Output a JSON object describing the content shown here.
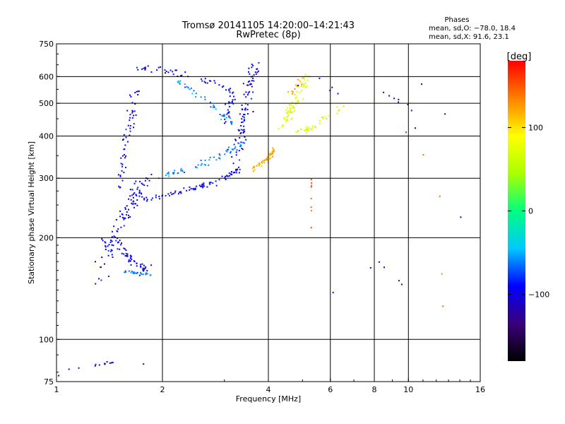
{
  "chart_data": {
    "type": "scatter",
    "title": "Tromsø 20141105 14:20:00–14:21:43",
    "subtitle": "RwPretec (8p)",
    "stats": {
      "heading": "Phases",
      "line_o": "mean, sd,O: −78.0, 18.4",
      "line_x": "mean, sd,X:  91.6, 23.1"
    },
    "xlabel": "Frequency [MHz]",
    "ylabel": "Stationary phase Virtual Height [km]",
    "x_scale": "log",
    "y_scale": "log",
    "xlim": [
      1,
      16
    ],
    "ylim": [
      75,
      750
    ],
    "x_ticks": [
      1,
      2,
      4,
      6,
      8,
      10,
      16
    ],
    "x_tick_labels": [
      "1",
      "2",
      "4",
      "6",
      "8",
      "10",
      "16"
    ],
    "x_grid": [
      2,
      4,
      6,
      8,
      10
    ],
    "y_ticks": [
      75,
      100,
      200,
      300,
      400,
      500,
      600,
      750
    ],
    "y_tick_labels": [
      "75",
      "100",
      "200",
      "300",
      "400",
      "500",
      "600",
      "750"
    ],
    "y_grid": [
      100,
      200,
      300,
      400,
      500,
      600
    ],
    "grid": true,
    "colorbar": {
      "unit_label": "[deg]",
      "range": [
        -180,
        180
      ],
      "ticks": [
        100,
        0,
        -100
      ],
      "tick_labels": [
        "100",
        "0",
        "−100"
      ],
      "colormap": [
        "#000000",
        "#3a007a",
        "#0000ff",
        "#00c8ff",
        "#00ff80",
        "#aaff00",
        "#ffff00",
        "#ff8000",
        "#ff0000"
      ]
    },
    "series": [
      {
        "phase_deg": -95,
        "traces": [
          {
            "f": [
              1.32,
              1.4,
              1.5,
              1.6,
              1.7,
              1.8
            ],
            "h": [
              150,
              180,
              215,
              245,
              270,
              300
            ],
            "spread": 0.07,
            "n": 90
          },
          {
            "f": [
              1.4,
              1.5,
              1.6,
              1.7,
              1.8
            ],
            "h": [
              200,
              190,
              175,
              165,
              160
            ],
            "spread": 0.06,
            "n": 60
          },
          {
            "f": [
              1.5,
              1.55,
              1.6,
              1.65,
              1.7
            ],
            "h": [
              280,
              340,
              400,
              470,
              560
            ],
            "spread": 0.05,
            "n": 55
          },
          {
            "f": [
              1.75,
              2.0,
              2.3,
              2.6,
              3.0,
              3.3
            ],
            "h": [
              260,
              265,
              275,
              285,
              300,
              320
            ],
            "spread": 0.03,
            "n": 80
          },
          {
            "f": [
              3.2,
              3.35,
              3.5,
              3.65
            ],
            "h": [
              330,
              420,
              520,
              640
            ],
            "spread": 0.06,
            "n": 90
          },
          {
            "f": [
              1.7,
              2.0,
              2.4,
              2.9,
              3.2
            ],
            "h": [
              640,
              625,
              600,
              570,
              540
            ],
            "spread": 0.03,
            "n": 45
          },
          {
            "f": [
              3.0,
              3.1,
              3.2
            ],
            "h": [
              430,
              480,
              550
            ],
            "spread": 0.04,
            "n": 25
          }
        ]
      },
      {
        "phase_deg": -60,
        "traces": [
          {
            "f": [
              1.9,
              2.2,
              2.6,
              3.0,
              3.4
            ],
            "h": [
              300,
              310,
              330,
              355,
              380
            ],
            "spread": 0.03,
            "n": 55
          },
          {
            "f": [
              2.2,
              2.6,
              2.9,
              3.2
            ],
            "h": [
              580,
              520,
              470,
              430
            ],
            "spread": 0.03,
            "n": 40
          },
          {
            "f": [
              1.55,
              1.65,
              1.75,
              1.85
            ],
            "h": [
              160,
              158,
              157,
              156
            ],
            "spread": 0.015,
            "n": 25
          }
        ]
      },
      {
        "phase_deg": 70,
        "traces": [
          {
            "f": [
              4.4,
              4.6,
              4.8,
              5.0,
              5.2
            ],
            "h": [
              430,
              470,
              510,
              560,
              610
            ],
            "spread": 0.04,
            "n": 70
          },
          {
            "f": [
              4.8,
              5.2,
              5.6,
              6.0,
              6.5
            ],
            "h": [
              410,
              420,
              440,
              460,
              490
            ],
            "spread": 0.03,
            "n": 35
          }
        ]
      },
      {
        "phase_deg": 120,
        "traces": [
          {
            "f": [
              3.6,
              3.8,
              4.0,
              4.2
            ],
            "h": [
              320,
              330,
              345,
              365
            ],
            "spread": 0.03,
            "n": 45
          },
          {
            "f": [
              4.6,
              4.8,
              5.0
            ],
            "h": [
              520,
              560,
              600
            ],
            "spread": 0.03,
            "n": 15
          }
        ]
      },
      {
        "phase_deg": -110,
        "traces": [
          {
            "f": [
              1.0,
              1.1,
              1.35,
              1.5,
              1.65,
              1.85
            ],
            "h": [
              78,
              82,
              84,
              86,
              84,
              85
            ],
            "spread": 0.02,
            "n": 14
          },
          {
            "f": [
              5.6,
              8.3,
              9.5,
              11.0,
              13.5,
              14.5
            ],
            "h": [
              130,
              170,
              145,
              600,
              380,
              155
            ],
            "spread": 0.02,
            "n": 10
          },
          {
            "f": [
              4.5,
              5.7,
              6.9,
              8.7,
              9.5,
              10.4
            ],
            "h": [
              560,
              590,
              470,
              540,
              500,
              470
            ],
            "spread": 0.03,
            "n": 12
          }
        ]
      },
      {
        "phase_deg": 150,
        "traces": [
          {
            "f": [
              5.3,
              5.3,
              5.3,
              5.3,
              5.3
            ],
            "h": [
              350,
              290,
              260,
              230,
              175
            ],
            "spread": 0.004,
            "n": 8
          },
          {
            "f": [
              8.4,
              10.0,
              12.3,
              12.5
            ],
            "h": [
              290,
              420,
              260,
              125
            ],
            "spread": 0.01,
            "n": 5
          }
        ]
      }
    ]
  }
}
